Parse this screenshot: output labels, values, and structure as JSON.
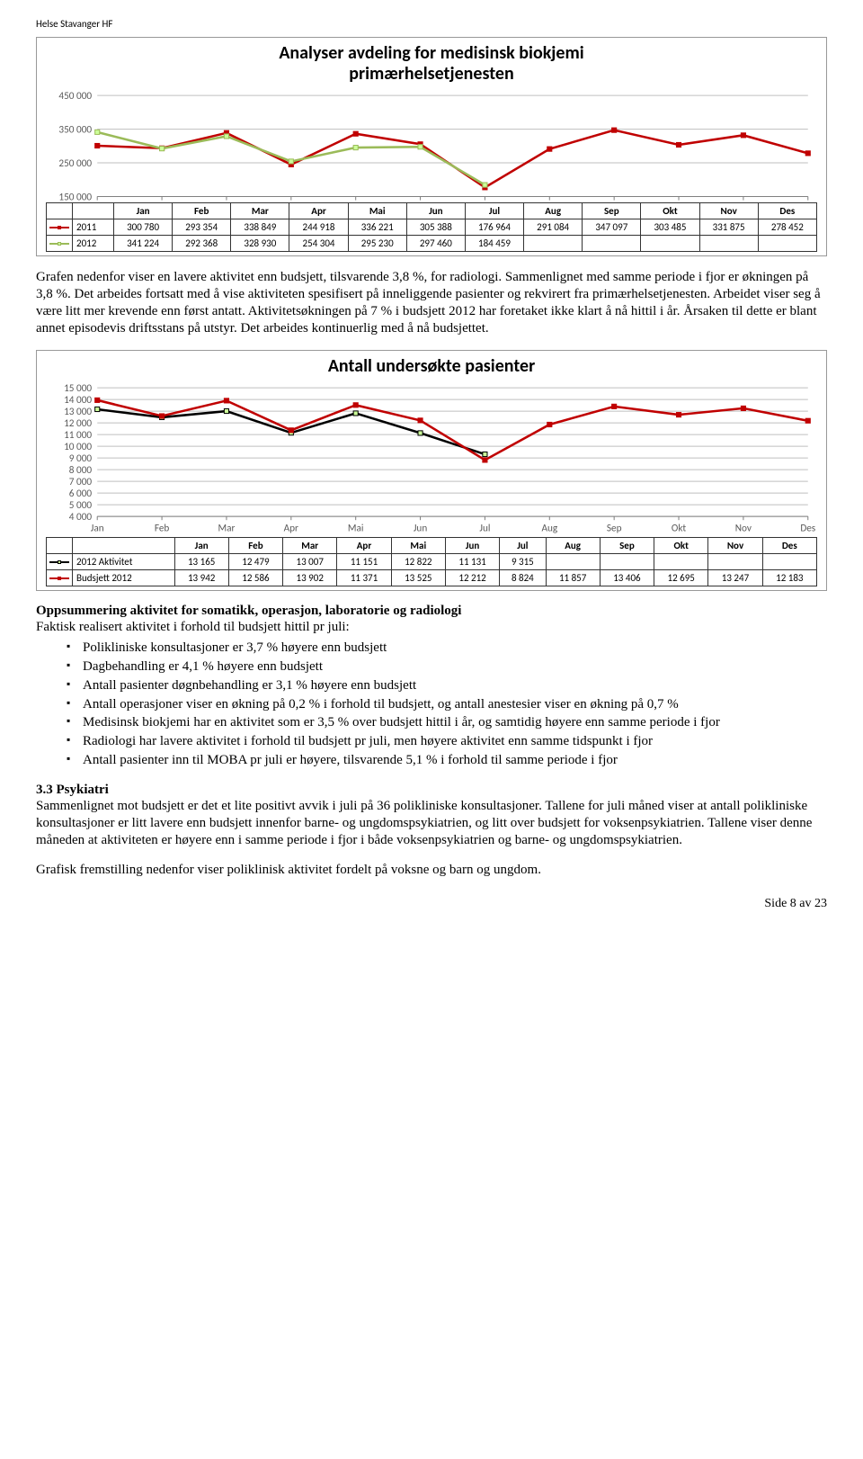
{
  "header": {
    "org": "Helse Stavanger HF"
  },
  "chart1": {
    "title_line1": "Analyser avdeling for medisinsk biokjemi",
    "title_line2": "primærhelsetjenesten",
    "months": [
      "Jan",
      "Feb",
      "Mar",
      "Apr",
      "Mai",
      "Jun",
      "Jul",
      "Aug",
      "Sep",
      "Okt",
      "Nov",
      "Des"
    ],
    "y_ticks": [
      150000,
      250000,
      350000,
      450000
    ],
    "y_labels": [
      "150 000",
      "250 000",
      "350 000",
      "450 000"
    ],
    "ylim": [
      150000,
      450000
    ],
    "series": [
      {
        "name": "2011",
        "color": "#c00000",
        "marker_border": "#c00000",
        "marker_fill": "#c00000",
        "values": [
          300780,
          293354,
          338849,
          244918,
          336221,
          305388,
          176964,
          291084,
          347097,
          303485,
          331875,
          278452
        ]
      },
      {
        "name": "2012",
        "color": "#9bbb59",
        "marker_border": "#9bbb59",
        "marker_fill": "#ccff99",
        "values": [
          341224,
          292368,
          328930,
          254304,
          295230,
          297460,
          184459,
          null,
          null,
          null,
          null,
          null
        ]
      }
    ],
    "grid_color": "#bfbfbf",
    "axis_color": "#808080",
    "background": "#ffffff",
    "title_fontsize": 20,
    "label_fontsize": 11
  },
  "para1": "Grafen nedenfor viser en lavere aktivitet enn budsjett, tilsvarende 3,8 %, for radiologi. Sammenlignet med samme periode i fjor er økningen på 3,8 %. Det arbeides fortsatt med å vise aktiviteten spesifisert på inneliggende pasienter og rekvirert fra primærhelsetjenesten. Arbeidet viser seg å være litt mer krevende enn først antatt. Aktivitetsøkningen på 7 % i budsjett 2012 har foretaket ikke klart å nå hittil i år. Årsaken til dette er blant annet episodevis driftsstans på utstyr. Det arbeides kontinuerlig med å nå budsjettet.",
  "chart2": {
    "title": "Antall undersøkte pasienter",
    "months": [
      "Jan",
      "Feb",
      "Mar",
      "Apr",
      "Mai",
      "Jun",
      "Jul",
      "Aug",
      "Sep",
      "Okt",
      "Nov",
      "Des"
    ],
    "y_ticks": [
      4000,
      5000,
      6000,
      7000,
      8000,
      9000,
      10000,
      11000,
      12000,
      13000,
      14000,
      15000
    ],
    "y_labels": [
      "4 000",
      "5 000",
      "6 000",
      "7 000",
      "8 000",
      "9 000",
      "10 000",
      "11 000",
      "12 000",
      "13 000",
      "14 000",
      "15 000"
    ],
    "ylim": [
      4000,
      15000
    ],
    "series": [
      {
        "name": "2012 Aktivitet",
        "color": "#000000",
        "marker_border": "#000000",
        "marker_fill": "#ccff99",
        "values": [
          13165,
          12479,
          13007,
          11151,
          12822,
          11131,
          9315,
          null,
          null,
          null,
          null,
          null
        ],
        "display": [
          "13 165",
          "12 479",
          "13 007",
          "11 151",
          "12 822",
          "11 131",
          "9 315",
          "",
          "",
          "",
          "",
          ""
        ]
      },
      {
        "name": "Budsjett 2012",
        "color": "#c00000",
        "marker_border": "#c00000",
        "marker_fill": "#c00000",
        "values": [
          13942,
          12586,
          13902,
          11371,
          13525,
          12212,
          8824,
          11857,
          13406,
          12695,
          13247,
          12183
        ],
        "display": [
          "13 942",
          "12 586",
          "13 902",
          "11 371",
          "13 525",
          "12 212",
          "8 824",
          "11 857",
          "13 406",
          "12 695",
          "13 247",
          "12 183"
        ]
      }
    ],
    "grid_color": "#bfbfbf",
    "axis_color": "#808080",
    "background": "#ffffff",
    "title_fontsize": 20,
    "label_fontsize": 11
  },
  "summary": {
    "heading": "Oppsummering aktivitet for somatikk, operasjon, laboratorie og radiologi",
    "lead": "Faktisk realisert aktivitet i forhold til budsjett hittil pr juli:",
    "bullets": [
      "Polikliniske konsultasjoner er 3,7 % høyere enn budsjett",
      "Dagbehandling er 4,1 % høyere enn budsjett",
      "Antall pasienter døgnbehandling er 3,1 % høyere enn budsjett",
      "Antall operasjoner viser en økning på 0,2 % i forhold til budsjett, og antall anestesier viser en økning på 0,7 %",
      "Medisinsk biokjemi har en aktivitet som er 3,5 % over budsjett hittil i år, og samtidig høyere enn samme periode i fjor",
      "Radiologi har lavere aktivitet i forhold til budsjett pr juli, men høyere aktivitet enn samme tidspunkt i fjor",
      "Antall pasienter inn til MOBA pr juli er høyere, tilsvarende 5,1 % i forhold til samme periode i fjor"
    ]
  },
  "section33": {
    "heading": "3.3 Psykiatri",
    "body": "Sammenlignet mot budsjett er det et lite positivt avvik i juli på 36 polikliniske konsultasjoner. Tallene for juli måned viser at antall polikliniske konsultasjoner er litt lavere enn budsjett innenfor barne- og ungdomspsykiatrien, og litt over budsjett for voksenpsykiatrien. Tallene viser denne måneden at aktiviteten er høyere enn i samme periode i fjor i både voksenpsykiatrien og barne- og ungdomspsykiatrien.",
    "trail": "Grafisk fremstilling nedenfor viser poliklinisk aktivitet fordelt på voksne og barn og ungdom."
  },
  "footer": {
    "page": "Side 8 av 23"
  }
}
